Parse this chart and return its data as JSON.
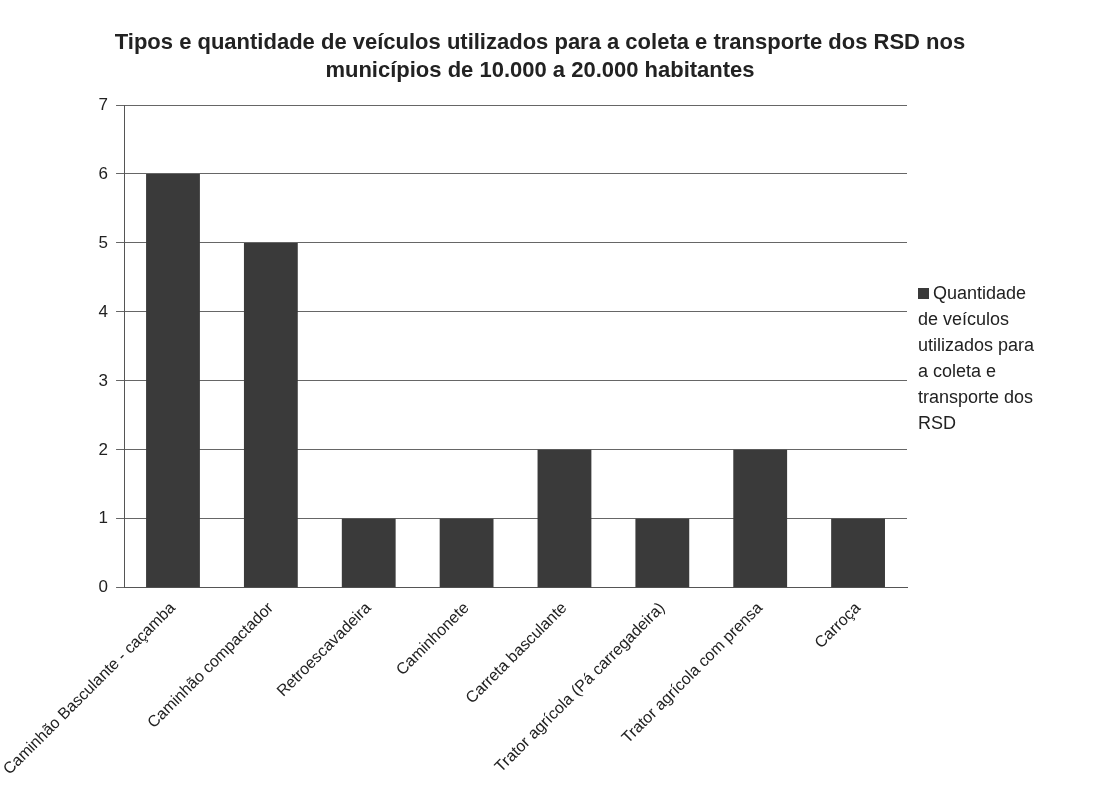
{
  "chart_data": {
    "type": "bar",
    "title": "Tipos e quantidade de veículos utilizados para a coleta e transporte dos RSD nos municípios de 10.000 a 20.000 habitantes",
    "categories": [
      "Caminhão Basculante - caçamba",
      "Caminhão compactador",
      "Retroescavadeira",
      "Caminhonete",
      "Carreta basculante",
      "Trator agrícola (Pá carregadeira)",
      "Trator agrícola com prensa",
      "Carroça"
    ],
    "series": [
      {
        "name": "Quantidade de veículos utilizados para a coleta e transporte dos RSD",
        "color": "#3a3a3a",
        "values": [
          6,
          5,
          1,
          1,
          2,
          1,
          2,
          1
        ]
      }
    ],
    "ylim": [
      0,
      7
    ],
    "yticks": [
      0,
      1,
      2,
      3,
      4,
      5,
      6,
      7
    ],
    "grid": "y",
    "legend": "right"
  }
}
